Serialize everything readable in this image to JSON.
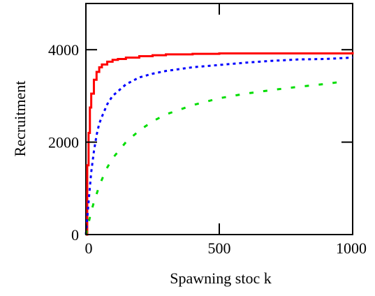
{
  "chart_data": {
    "type": "line",
    "xlabel": "Spawning stoc k",
    "ylabel": "Recruitment",
    "xlim": [
      0,
      1000
    ],
    "ylim": [
      0,
      5000
    ],
    "xticks": [
      0,
      500,
      1000
    ],
    "xtick_labels": [
      "0",
      "500",
      "1000"
    ],
    "yticks": [
      0,
      2000,
      4000
    ],
    "ytick_labels": [
      "0",
      "2000",
      "4000"
    ],
    "grid": false,
    "legend": "none",
    "series": [
      {
        "color": "#ff0000",
        "style": "solid-step",
        "x": [
          0,
          5,
          10,
          15,
          20,
          30,
          40,
          50,
          60,
          80,
          100,
          120,
          150,
          200,
          250,
          300,
          400,
          500,
          600,
          700,
          800,
          900,
          950,
          1000
        ],
        "y": [
          0,
          1500,
          2200,
          2750,
          3050,
          3350,
          3520,
          3620,
          3680,
          3740,
          3780,
          3800,
          3830,
          3860,
          3880,
          3900,
          3910,
          3920,
          3920,
          3920,
          3920,
          3920,
          3920,
          3950
        ]
      },
      {
        "color": "#0000ff",
        "style": "dotted",
        "x": [
          0,
          10,
          20,
          30,
          40,
          50,
          60,
          80,
          100,
          150,
          200,
          250,
          300,
          400,
          500,
          600,
          700,
          800,
          900,
          1000
        ],
        "y": [
          0,
          700,
          1350,
          1800,
          2150,
          2400,
          2550,
          2820,
          3000,
          3250,
          3400,
          3480,
          3540,
          3620,
          3670,
          3720,
          3760,
          3790,
          3800,
          3830
        ]
      },
      {
        "color": "#00dd00",
        "style": "dashed",
        "x": [
          0,
          10,
          20,
          30,
          50,
          75,
          100,
          150,
          200,
          250,
          300,
          400,
          500,
          600,
          700,
          800,
          900,
          950
        ],
        "y": [
          0,
          250,
          500,
          700,
          1050,
          1400,
          1650,
          2000,
          2250,
          2450,
          2600,
          2800,
          2950,
          3050,
          3130,
          3200,
          3260,
          3300
        ]
      }
    ]
  }
}
